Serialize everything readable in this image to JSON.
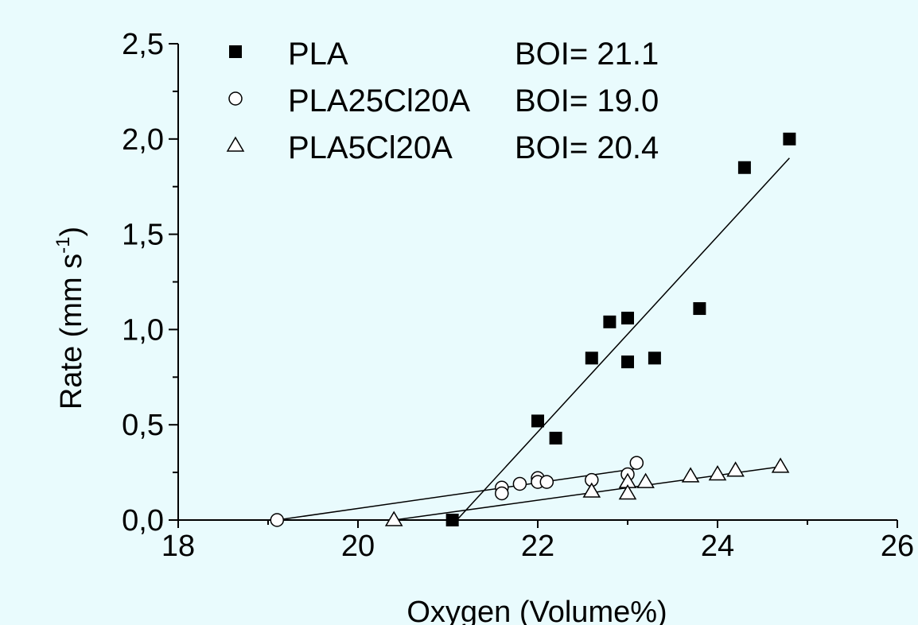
{
  "chart_data": {
    "type": "scatter",
    "xlabel": "Oxygen (Volume%)",
    "ylabel_main": "Rate (mm s",
    "ylabel_sup": "-1",
    "ylabel_close": ")",
    "xlim": [
      18,
      26
    ],
    "ylim": [
      0,
      2.5
    ],
    "x_ticks": [
      18,
      20,
      22,
      24,
      26
    ],
    "x_tick_labels": [
      "18",
      "20",
      "22",
      "24",
      "26"
    ],
    "y_ticks": [
      0,
      0.5,
      1.0,
      1.5,
      2.0,
      2.5
    ],
    "y_tick_labels": [
      "0,0",
      "0,5",
      "1,0",
      "1,5",
      "2,0",
      "2,5"
    ],
    "grid": false,
    "legend_position": "top-left",
    "series": [
      {
        "name": "PLA",
        "annotation": "BOI= 21.1",
        "marker": "filled-square",
        "points": [
          [
            21.05,
            0.0
          ],
          [
            22.0,
            0.52
          ],
          [
            22.2,
            0.43
          ],
          [
            22.6,
            0.85
          ],
          [
            22.8,
            1.04
          ],
          [
            23.0,
            1.06
          ],
          [
            23.0,
            0.83
          ],
          [
            23.3,
            0.85
          ],
          [
            23.8,
            1.11
          ],
          [
            24.3,
            1.85
          ],
          [
            24.8,
            2.0
          ]
        ],
        "fit": [
          [
            21.1,
            0.0
          ],
          [
            24.8,
            1.9
          ]
        ]
      },
      {
        "name": "PLA25Cl20A",
        "annotation": "BOI= 19.0",
        "marker": "open-circle",
        "points": [
          [
            19.1,
            0.0
          ],
          [
            21.6,
            0.17
          ],
          [
            21.6,
            0.14
          ],
          [
            21.8,
            0.19
          ],
          [
            22.0,
            0.22
          ],
          [
            22.0,
            0.2
          ],
          [
            22.1,
            0.2
          ],
          [
            22.6,
            0.21
          ],
          [
            23.0,
            0.24
          ],
          [
            23.1,
            0.3
          ]
        ],
        "fit": [
          [
            19.1,
            0.0
          ],
          [
            23.1,
            0.27
          ]
        ]
      },
      {
        "name": "PLA5Cl20A",
        "annotation": "BOI= 20.4",
        "marker": "open-triangle",
        "points": [
          [
            20.4,
            0.0
          ],
          [
            22.6,
            0.15
          ],
          [
            23.0,
            0.2
          ],
          [
            23.0,
            0.14
          ],
          [
            23.2,
            0.2
          ],
          [
            23.7,
            0.23
          ],
          [
            24.0,
            0.24
          ],
          [
            24.2,
            0.26
          ],
          [
            24.7,
            0.28
          ]
        ],
        "fit": [
          [
            20.4,
            0.0
          ],
          [
            24.7,
            0.28
          ]
        ]
      }
    ]
  }
}
